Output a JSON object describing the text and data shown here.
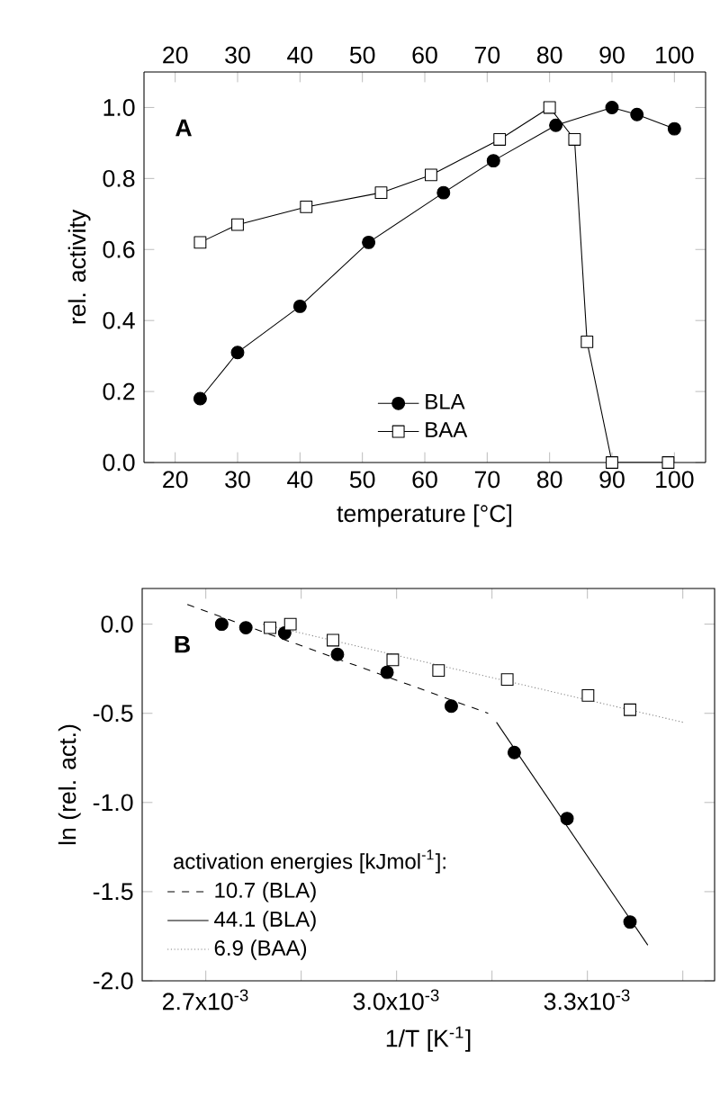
{
  "chart_data": [
    {
      "type": "line",
      "annotations": [
        "A"
      ],
      "xlabel": "temperature [°C]",
      "ylabel": "rel. activity",
      "legend": "bottom",
      "xlim": [
        15,
        105
      ],
      "xticks": [
        20,
        30,
        40,
        50,
        60,
        70,
        80,
        90,
        100
      ],
      "x2lim": [
        15,
        105
      ],
      "x2ticks": [
        20,
        30,
        40,
        50,
        60,
        70,
        80,
        90,
        100
      ],
      "ylim": [
        0,
        1.1
      ],
      "yticks": [
        {
          "value": 0,
          "label": "0.0"
        },
        0.2,
        0.4,
        0.6,
        0.8,
        {
          "value": 1,
          "label": "1.0"
        }
      ],
      "series": [
        {
          "name": "BLA",
          "color": "#000000",
          "marker": "circle",
          "line_style": "solid",
          "x": [
            24,
            30,
            40,
            51,
            63,
            71,
            81,
            90,
            94,
            100
          ],
          "values": [
            0.18,
            0.31,
            0.44,
            0.62,
            0.76,
            0.85,
            0.95,
            1.0,
            0.98,
            0.94
          ]
        },
        {
          "name": "BAA",
          "color": "#000000",
          "marker": "square",
          "line_style": "solid",
          "x": [
            24,
            30,
            41,
            53,
            61,
            72,
            80,
            84,
            86,
            90,
            99
          ],
          "values": [
            0.62,
            0.67,
            0.72,
            0.76,
            0.81,
            0.91,
            1.0,
            0.91,
            0.34,
            0.0,
            0.0
          ]
        }
      ]
    },
    {
      "type": "scatter",
      "annotations": [
        "B"
      ],
      "xlabel": "1/T [K$^{-1}$]",
      "ylabel": "ln (rel. act.)",
      "legend": "bottom left",
      "legend_title": "activation energies [kJmol$^{-1}$]:",
      "xlim": [
        0.0026,
        0.0035
      ],
      "xticks": [
        {
          "value": 0.0027,
          "label": "2.7x10$^{-3}$"
        },
        {
          "value": 0.00285,
          "label": null
        },
        {
          "value": 0.003,
          "label": "3.0x10$^{-3}$"
        },
        {
          "value": 0.00315,
          "label": null
        },
        {
          "value": 0.0033,
          "label": "3.3x10$^{-3}$"
        },
        {
          "value": 0.00345,
          "label": null
        }
      ],
      "ylim": [
        -2.0,
        0.2
      ],
      "yticks": [
        {
          "value": -2,
          "label": "-2.0"
        },
        -1.5,
        {
          "value": -1,
          "label": "-1.0"
        },
        -0.5,
        {
          "value": 0,
          "label": "0.0"
        }
      ],
      "series": [
        {
          "color": "#000000",
          "marker": "circle",
          "x": [
            0.002725,
            0.002763,
            0.002824,
            0.002907,
            0.002985,
            0.003086,
            0.003185,
            0.003268,
            0.003367
          ],
          "values": [
            0.0,
            -0.02,
            -0.05,
            -0.17,
            -0.27,
            -0.46,
            -0.72,
            -1.09,
            -1.67
          ]
        },
        {
          "color": "#000000",
          "marker": "square",
          "x": [
            0.002801,
            0.002833,
            0.0029,
            0.002994,
            0.003066,
            0.003174,
            0.003301,
            0.003367
          ],
          "values": [
            -0.02,
            0.0,
            -0.09,
            -0.2,
            -0.26,
            -0.31,
            -0.4,
            -0.48
          ]
        },
        {
          "name": "10.7 (BLA)",
          "type": "line",
          "color": "#000000",
          "marker": "none",
          "line_style": "dashed",
          "x": [
            0.002671,
            0.003144
          ],
          "values": [
            0.11,
            -0.5
          ]
        },
        {
          "name": "44.1 (BLA)",
          "type": "line",
          "color": "#000000",
          "marker": "none",
          "line_style": "solid",
          "x": [
            0.003157,
            0.003395
          ],
          "values": [
            -0.55,
            -1.8
          ]
        },
        {
          "name": "6.9  (BAA)",
          "type": "line",
          "color": "#777777",
          "marker": "none",
          "line_style": "dotted",
          "x": [
            0.00279,
            0.00345
          ],
          "values": [
            0.0,
            -0.55
          ]
        }
      ]
    }
  ]
}
